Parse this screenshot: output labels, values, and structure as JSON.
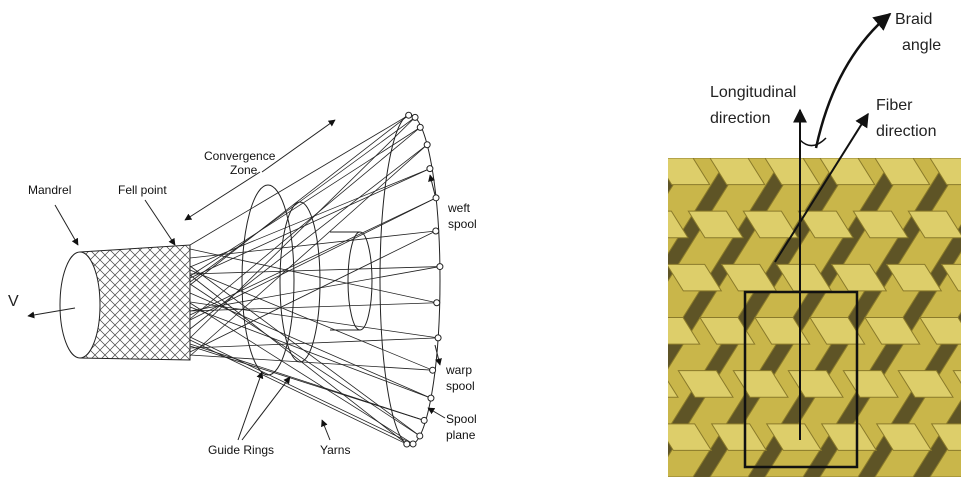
{
  "left_diagram": {
    "mandrel": "Mandrel",
    "fell_point": "Fell point",
    "convergence_zone": [
      "Convergence",
      "Zone"
    ],
    "weft_spool": [
      "weft",
      "spool"
    ],
    "velocity": "V",
    "warp_spool": [
      "warp",
      "spool"
    ],
    "spool_plane": [
      "Spool",
      "plane"
    ],
    "guide_rings": "Guide Rings",
    "yarns": "Yarns"
  },
  "right_diagram": {
    "braid_angle": [
      "Braid",
      "angle"
    ],
    "longitudinal_direction": [
      "Longitudinal",
      "direction"
    ],
    "fiber_direction": [
      "Fiber",
      "direction"
    ]
  }
}
